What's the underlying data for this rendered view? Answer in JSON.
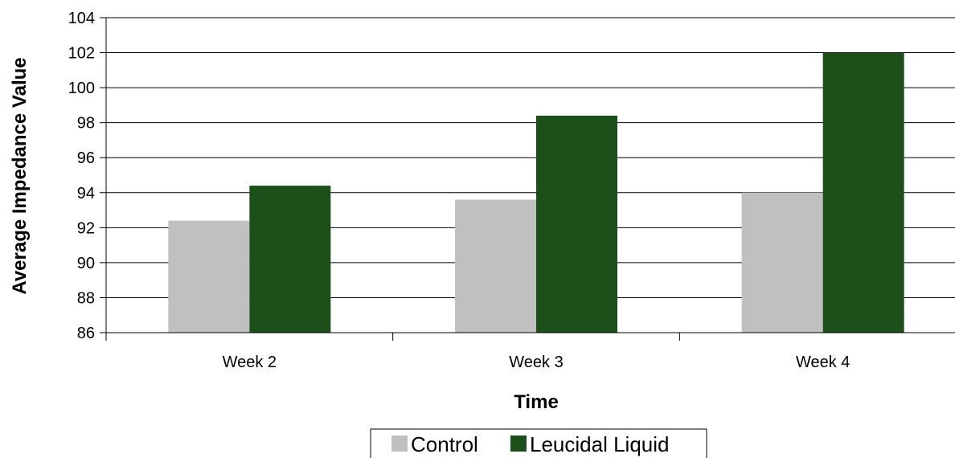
{
  "chart_data": {
    "type": "bar",
    "categories": [
      "Week 2",
      "Week 3",
      "Week 4"
    ],
    "series": [
      {
        "name": "Control",
        "values": [
          92.4,
          93.6,
          94.0
        ],
        "color": "#c0c0c0"
      },
      {
        "name": "Leucidal Liquid",
        "values": [
          94.4,
          98.4,
          102.0
        ],
        "color": "#1c4f1a"
      }
    ],
    "title": "",
    "xlabel": "Time",
    "ylabel": "Average Impedance Value",
    "ylim": [
      86,
      104
    ],
    "yticks": [
      "86",
      "88",
      "90",
      "92",
      "94",
      "96",
      "98",
      "100",
      "102",
      "104"
    ],
    "grid": true,
    "legend_position": "bottom"
  }
}
